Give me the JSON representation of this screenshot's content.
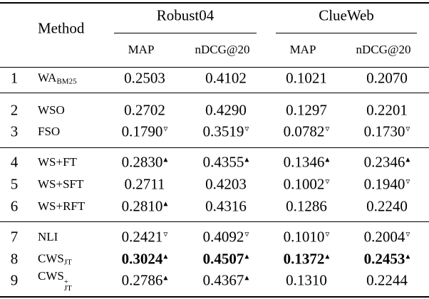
{
  "header": {
    "method": "Method",
    "groups": [
      {
        "name": "Robust04",
        "columns": [
          "MAP",
          "nDCG@20"
        ]
      },
      {
        "name": "ClueWeb",
        "columns": [
          "MAP",
          "nDCG@20"
        ]
      }
    ]
  },
  "sections": [
    [
      {
        "id": "1",
        "method": {
          "text": "WA",
          "sub": "BM25"
        },
        "cells": [
          {
            "value": "0.2503"
          },
          {
            "value": "0.4102"
          },
          {
            "value": "0.1021"
          },
          {
            "value": "0.2070"
          }
        ]
      }
    ],
    [
      {
        "id": "2",
        "method": {
          "text": "WSO"
        },
        "cells": [
          {
            "value": "0.2702"
          },
          {
            "value": "0.4290"
          },
          {
            "value": "0.1297"
          },
          {
            "value": "0.2201"
          }
        ]
      },
      {
        "id": "3",
        "method": {
          "text": "FSO"
        },
        "cells": [
          {
            "value": "0.1790",
            "mark": "▿"
          },
          {
            "value": "0.3519",
            "mark": "▿"
          },
          {
            "value": "0.0782",
            "mark": "▿"
          },
          {
            "value": "0.1730",
            "mark": "▿"
          }
        ]
      }
    ],
    [
      {
        "id": "4",
        "method": {
          "text": "WS+FT"
        },
        "cells": [
          {
            "value": "0.2830",
            "mark": "▴"
          },
          {
            "value": "0.4355",
            "mark": "▴"
          },
          {
            "value": "0.1346",
            "mark": "▴"
          },
          {
            "value": "0.2346",
            "mark": "▴"
          }
        ]
      },
      {
        "id": "5",
        "method": {
          "text": "WS+SFT"
        },
        "cells": [
          {
            "value": "0.2711"
          },
          {
            "value": "0.4203"
          },
          {
            "value": "0.1002",
            "mark": "▿"
          },
          {
            "value": "0.1940",
            "mark": "▿"
          }
        ]
      },
      {
        "id": "6",
        "method": {
          "text": "WS+RFT"
        },
        "cells": [
          {
            "value": "0.2810",
            "mark": "▴"
          },
          {
            "value": "0.4316"
          },
          {
            "value": "0.1286"
          },
          {
            "value": "0.2240"
          }
        ]
      }
    ],
    [
      {
        "id": "7",
        "method": {
          "text": "NLI"
        },
        "cells": [
          {
            "value": "0.2421",
            "mark": "▿"
          },
          {
            "value": "0.4092",
            "mark": "▿"
          },
          {
            "value": "0.1010",
            "mark": "▿"
          },
          {
            "value": "0.2004",
            "mark": "▿"
          }
        ]
      },
      {
        "id": "8",
        "bold": true,
        "method": {
          "text": "CWS",
          "sub": "JT"
        },
        "cells": [
          {
            "value": "0.3024",
            "mark": "▴"
          },
          {
            "value": "0.4507",
            "mark": "▴"
          },
          {
            "value": "0.1372",
            "mark": "▴"
          },
          {
            "value": "0.2453",
            "mark": "▴"
          }
        ]
      },
      {
        "id": "9",
        "method": {
          "text": "CWS",
          "sub": "JT",
          "sup": "+"
        },
        "cells": [
          {
            "value": "0.2786",
            "mark": "▴"
          },
          {
            "value": "0.4367",
            "mark": "▴"
          },
          {
            "value": "0.1310"
          },
          {
            "value": "0.2244"
          }
        ]
      }
    ]
  ]
}
